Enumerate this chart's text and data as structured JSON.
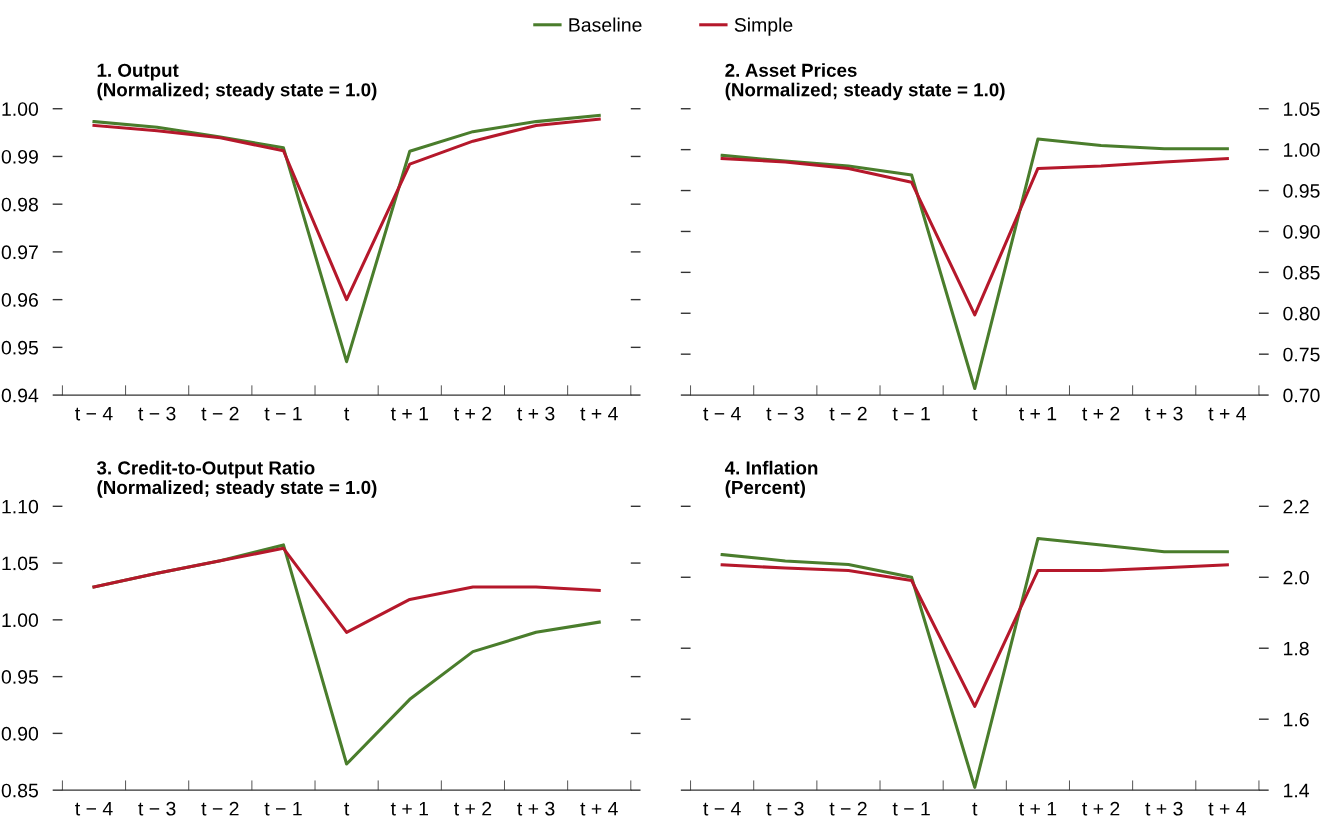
{
  "chart_data": [
    {
      "type": "line",
      "title": "1. Output",
      "subtitle": "(Normalized; steady state = 1.0)",
      "categories": [
        "t − 4",
        "t − 3",
        "t − 2",
        "t − 1",
        "t",
        "t + 1",
        "t + 2",
        "t + 3",
        "t + 4"
      ],
      "ylim": [
        0.94,
        1.0
      ],
      "yticks": [
        {
          "value": 0.94,
          "label": "0.94"
        },
        {
          "value": 0.95,
          "label": "0.95"
        },
        {
          "value": 0.96,
          "label": "0.96"
        },
        {
          "value": 0.97,
          "label": "0.97"
        },
        {
          "value": 0.98,
          "label": "0.98"
        },
        {
          "value": 0.99,
          "label": "0.99"
        },
        {
          "value": 1.0,
          "label": "1.00"
        }
      ],
      "grid": false,
      "legend": "top",
      "marker": "none",
      "line_style": "solid",
      "series": [
        {
          "name": "Baseline",
          "color": "#4a7d2c",
          "values": [
            0.9973,
            0.9961,
            0.9941,
            0.9918,
            0.947,
            0.9911,
            0.9952,
            0.9973,
            0.9986
          ]
        },
        {
          "name": "Simple",
          "color": "#b5182b",
          "values": [
            0.9965,
            0.9954,
            0.9939,
            0.9912,
            0.96,
            0.9884,
            0.9932,
            0.9965,
            0.9978
          ]
        }
      ]
    },
    {
      "type": "line",
      "title": "2. Asset Prices",
      "subtitle": "(Normalized; steady state = 1.0)",
      "categories": [
        "t − 4",
        "t − 3",
        "t − 2",
        "t − 1",
        "t",
        "t + 1",
        "t + 2",
        "t + 3",
        "t + 4"
      ],
      "y2lim": [
        0.7,
        1.05
      ],
      "y2ticks": [
        {
          "value": 0.7,
          "label": "0.70"
        },
        {
          "value": 0.75,
          "label": "0.75"
        },
        {
          "value": 0.8,
          "label": "0.80"
        },
        {
          "value": 0.85,
          "label": "0.85"
        },
        {
          "value": 0.9,
          "label": "0.90"
        },
        {
          "value": 0.95,
          "label": "0.95"
        },
        {
          "value": 1.0,
          "label": "1.00"
        },
        {
          "value": 1.05,
          "label": "1.05"
        }
      ],
      "grid": false,
      "marker": "none",
      "line_style": "solid",
      "series": [
        {
          "color": "#4a7d2c",
          "axis": "y2",
          "values": [
            0.993,
            0.986,
            0.98,
            0.969,
            0.708,
            1.013,
            1.005,
            1.001,
            1.001
          ]
        },
        {
          "color": "#b5182b",
          "axis": "y2",
          "values": [
            0.989,
            0.985,
            0.977,
            0.96,
            0.798,
            0.977,
            0.98,
            0.985,
            0.989
          ]
        }
      ]
    },
    {
      "type": "line",
      "title": "3. Credit-to-Output Ratio",
      "subtitle": "(Normalized; steady state = 1.0)",
      "categories": [
        "t − 4",
        "t − 3",
        "t − 2",
        "t − 1",
        "t",
        "t + 1",
        "t + 2",
        "t + 3",
        "t + 4"
      ],
      "ylim": [
        0.85,
        1.1
      ],
      "yticks": [
        {
          "value": 0.85,
          "label": "0.85"
        },
        {
          "value": 0.9,
          "label": "0.90"
        },
        {
          "value": 0.95,
          "label": "0.95"
        },
        {
          "value": 1.0,
          "label": "1.00"
        },
        {
          "value": 1.05,
          "label": "1.05"
        },
        {
          "value": 1.1,
          "label": "1.10"
        }
      ],
      "grid": false,
      "marker": "none",
      "line_style": "solid",
      "series": [
        {
          "color": "#4a7d2c",
          "values": [
            1.029,
            1.041,
            1.052,
            1.066,
            0.873,
            0.93,
            0.972,
            0.989,
            0.998
          ]
        },
        {
          "color": "#b5182b",
          "values": [
            1.029,
            1.041,
            1.052,
            1.063,
            0.989,
            1.018,
            1.029,
            1.029,
            1.026
          ]
        }
      ]
    },
    {
      "type": "line",
      "title": "4. Inflation",
      "subtitle": "(Percent)",
      "categories": [
        "t − 4",
        "t − 3",
        "t − 2",
        "t − 1",
        "t",
        "t + 1",
        "t + 2",
        "t + 3",
        "t + 4"
      ],
      "y2lim": [
        1.4,
        2.2
      ],
      "y2ticks": [
        {
          "value": 1.4,
          "label": "1.4"
        },
        {
          "value": 1.6,
          "label": "1.6"
        },
        {
          "value": 1.8,
          "label": "1.8"
        },
        {
          "value": 2.0,
          "label": "2.0"
        },
        {
          "value": 2.2,
          "label": "2.2"
        }
      ],
      "grid": false,
      "marker": "none",
      "line_style": "solid",
      "series": [
        {
          "color": "#4a7d2c",
          "axis": "y2",
          "values": [
            2.064,
            2.046,
            2.036,
            2.0,
            1.408,
            2.109,
            2.091,
            2.072,
            2.072
          ]
        },
        {
          "color": "#b5182b",
          "axis": "y2",
          "values": [
            2.035,
            2.026,
            2.019,
            1.991,
            1.636,
            2.019,
            2.019,
            2.027,
            2.035
          ]
        }
      ]
    }
  ]
}
